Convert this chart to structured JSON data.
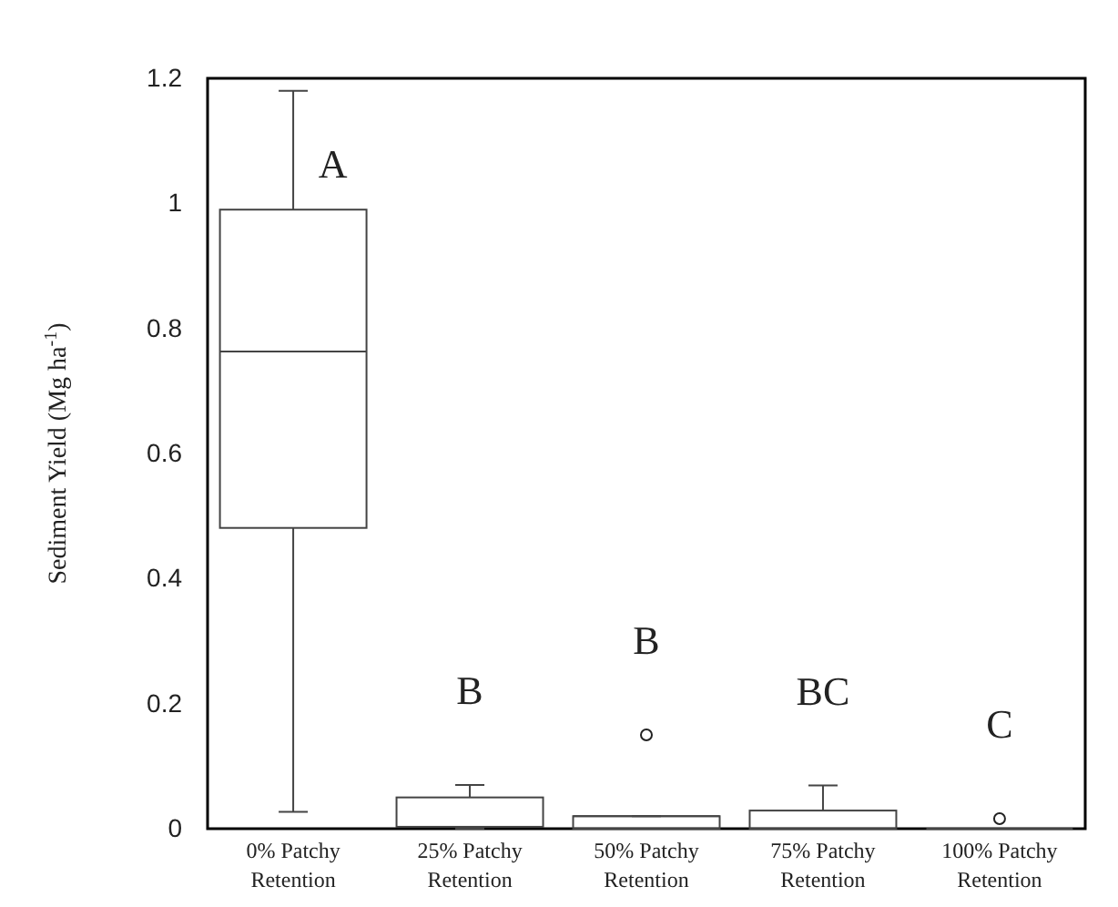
{
  "chart_data": {
    "type": "box",
    "ylabel": "Sediment Yield (Mg ha$^{-1}$)",
    "categories": [
      "0% Patchy Retention",
      "25% Patchy Retention",
      "50% Patchy Retention",
      "75% Patchy Retention",
      "100% Patchy Retention"
    ],
    "boxes": [
      {
        "low": 0.027,
        "q1": 0.481,
        "median": 0.763,
        "q3": 0.99,
        "high": 1.18
      },
      {
        "low": 0,
        "q1": 0.003,
        "median": 0.003,
        "q3": 0.05,
        "high": 0.07
      },
      {
        "low": 0,
        "q1": 0,
        "median": 0.02,
        "q3": 0.02,
        "high": 0.02,
        "outliers": [
          0.15
        ]
      },
      {
        "low": 0,
        "q1": 0,
        "median": 0,
        "q3": 0.029,
        "high": 0.069
      },
      {
        "low": 0,
        "q1": 0,
        "median": 0,
        "q3": 0,
        "high": 0,
        "outliers": [
          0.016
        ]
      }
    ],
    "ylim": [
      0,
      1.2
    ],
    "yticks": [
      0,
      0.2,
      0.4,
      0.6,
      0.8,
      1,
      1.2
    ],
    "grid": false,
    "annotations": [
      "A",
      "B",
      "B",
      "BC",
      "C"
    ]
  }
}
